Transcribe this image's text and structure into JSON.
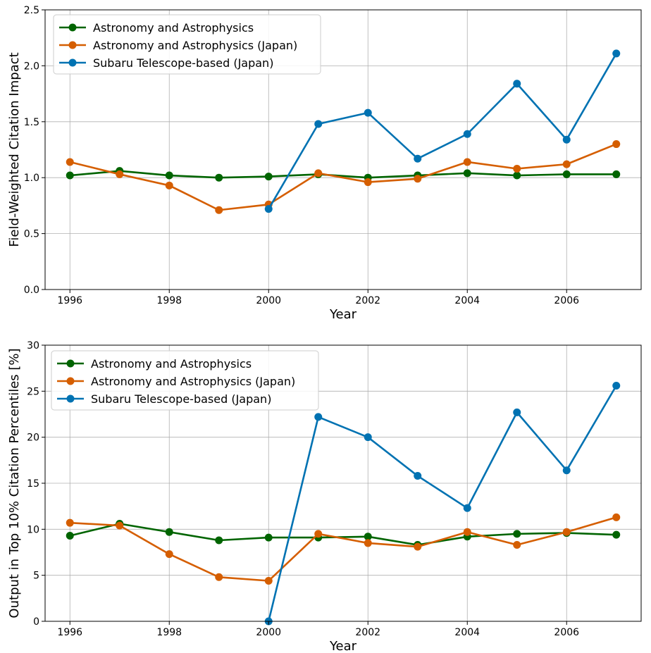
{
  "chart_data": [
    {
      "type": "line",
      "title": "",
      "xlabel": "Year",
      "ylabel": "Field-Weighted Citation Impact",
      "xlim": [
        1995.5,
        2007.5
      ],
      "ylim": [
        0,
        2.5
      ],
      "xticks": [
        1996,
        1998,
        2000,
        2002,
        2004,
        2006
      ],
      "yticks": [
        0.0,
        0.5,
        1.0,
        1.5,
        2.0,
        2.5
      ],
      "ytick_labels": [
        "0.0",
        "0.5",
        "1.0",
        "1.5",
        "2.0",
        "2.5"
      ],
      "grid": true,
      "legend": "upper-left",
      "series": [
        {
          "name": "Astronomy and Astrophysics",
          "color": "#006400",
          "x": [
            1996,
            1997,
            1998,
            1999,
            2000,
            2001,
            2002,
            2003,
            2004,
            2005,
            2006,
            2007
          ],
          "y": [
            1.02,
            1.06,
            1.02,
            1.0,
            1.01,
            1.03,
            1.0,
            1.02,
            1.04,
            1.02,
            1.03,
            1.03
          ]
        },
        {
          "name": "Astronomy and Astrophysics (Japan)",
          "color": "#d55e00",
          "x": [
            1996,
            1997,
            1998,
            1999,
            2000,
            2001,
            2002,
            2003,
            2004,
            2005,
            2006,
            2007
          ],
          "y": [
            1.14,
            1.03,
            0.93,
            0.71,
            0.76,
            1.04,
            0.96,
            0.99,
            1.14,
            1.08,
            1.12,
            1.3
          ]
        },
        {
          "name": "Subaru Telescope-based (Japan)",
          "color": "#0072b2",
          "x": [
            2000,
            2001,
            2002,
            2003,
            2004,
            2005,
            2006,
            2007
          ],
          "y": [
            0.72,
            1.48,
            1.58,
            1.17,
            1.39,
            1.84,
            1.34,
            2.11
          ]
        }
      ]
    },
    {
      "type": "line",
      "title": "",
      "xlabel": "Year",
      "ylabel": "Output in Top 10% Citation Percentiles [%]",
      "xlim": [
        1995.5,
        2007.5
      ],
      "ylim": [
        0,
        30
      ],
      "xticks": [
        1996,
        1998,
        2000,
        2002,
        2004,
        2006
      ],
      "yticks": [
        0,
        5,
        10,
        15,
        20,
        25,
        30
      ],
      "ytick_labels": [
        "0",
        "5",
        "10",
        "15",
        "20",
        "25",
        "30"
      ],
      "grid": true,
      "legend": "upper-left",
      "series": [
        {
          "name": "Astronomy and Astrophysics",
          "color": "#006400",
          "x": [
            1996,
            1997,
            1998,
            1999,
            2000,
            2001,
            2002,
            2003,
            2004,
            2005,
            2006,
            2007
          ],
          "y": [
            9.3,
            10.6,
            9.7,
            8.8,
            9.1,
            9.1,
            9.2,
            8.3,
            9.2,
            9.5,
            9.6,
            9.4
          ]
        },
        {
          "name": "Astronomy and Astrophysics (Japan)",
          "color": "#d55e00",
          "x": [
            1996,
            1997,
            1998,
            1999,
            2000,
            2001,
            2002,
            2003,
            2004,
            2005,
            2006,
            2007
          ],
          "y": [
            10.7,
            10.4,
            7.3,
            4.8,
            4.4,
            9.5,
            8.5,
            8.1,
            9.7,
            8.3,
            9.7,
            11.3
          ]
        },
        {
          "name": "Subaru Telescope-based (Japan)",
          "color": "#0072b2",
          "x": [
            2000,
            2001,
            2002,
            2003,
            2004,
            2005,
            2006,
            2007
          ],
          "y": [
            0.0,
            22.2,
            20.0,
            15.8,
            12.3,
            22.7,
            16.4,
            25.6
          ]
        }
      ]
    }
  ]
}
